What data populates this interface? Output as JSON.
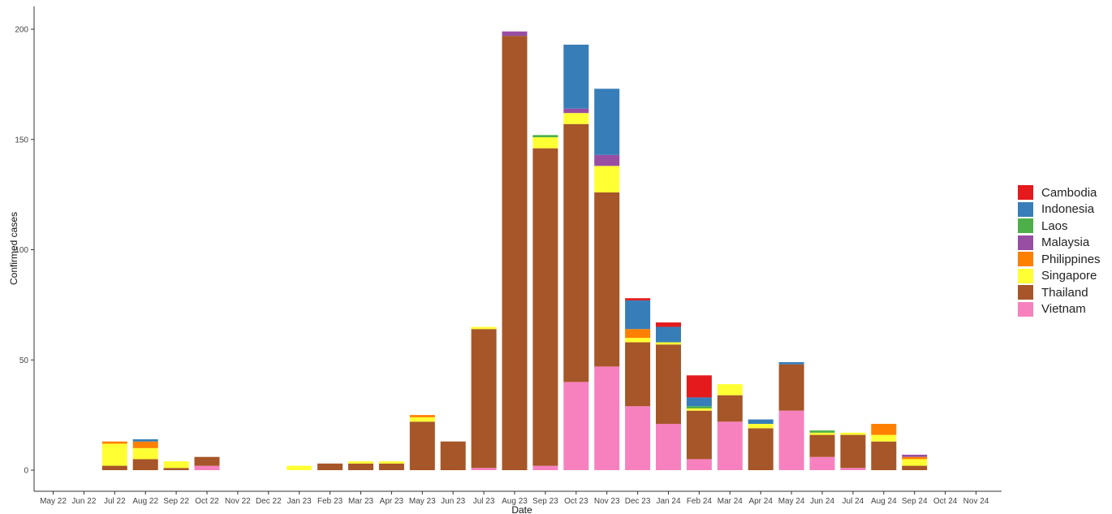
{
  "chart_data": {
    "type": "bar",
    "stacked": true,
    "xlabel": "Date",
    "ylabel": "Confirmed cases",
    "ylim": [
      0,
      200
    ],
    "yticks": [
      0,
      50,
      100,
      150,
      200
    ],
    "grid": false,
    "legend_position": "right",
    "categories": [
      "May 22",
      "Jun 22",
      "Jul 22",
      "Aug 22",
      "Sep 22",
      "Oct 22",
      "Nov 22",
      "Dec 22",
      "Jan 23",
      "Feb 23",
      "Mar 23",
      "Apr 23",
      "May 23",
      "Jun 23",
      "Jul 23",
      "Aug 23",
      "Sep 23",
      "Oct 23",
      "Nov 23",
      "Dec 23",
      "Jan 24",
      "Feb 24",
      "Mar 24",
      "Apr 24",
      "May 24",
      "Jun 24",
      "Jul 24",
      "Aug 24",
      "Sep 24",
      "Oct 24",
      "Nov 24"
    ],
    "series": [
      {
        "name": "Vietnam",
        "color": "#F781BF",
        "values": [
          0,
          0,
          0,
          0,
          0,
          2,
          0,
          0,
          0,
          0,
          0,
          0,
          0,
          0,
          1,
          0,
          2,
          40,
          47,
          29,
          21,
          5,
          22,
          0,
          27,
          6,
          1,
          0,
          0,
          0,
          0
        ]
      },
      {
        "name": "Thailand",
        "color": "#A65628",
        "values": [
          0,
          0,
          2,
          5,
          1,
          4,
          0,
          0,
          0,
          3,
          3,
          3,
          22,
          13,
          63,
          197,
          144,
          117,
          79,
          29,
          36,
          22,
          12,
          19,
          21,
          10,
          15,
          13,
          2,
          0,
          0
        ]
      },
      {
        "name": "Singapore",
        "color": "#FFFF33",
        "values": [
          0,
          0,
          10,
          5,
          3,
          0,
          0,
          0,
          2,
          0,
          1,
          1,
          2,
          0,
          1,
          0,
          5,
          5,
          12,
          2,
          1,
          1,
          5,
          2,
          0,
          1,
          1,
          3,
          3,
          0,
          0
        ]
      },
      {
        "name": "Philippines",
        "color": "#FF7F00",
        "values": [
          0,
          0,
          1,
          3,
          0,
          0,
          0,
          0,
          0,
          0,
          0,
          0,
          1,
          0,
          0,
          0,
          0,
          0,
          0,
          4,
          0,
          0,
          0,
          0,
          0,
          0,
          0,
          5,
          1,
          0,
          0
        ]
      },
      {
        "name": "Malaysia",
        "color": "#984EA3",
        "values": [
          0,
          0,
          0,
          0,
          0,
          0,
          0,
          0,
          0,
          0,
          0,
          0,
          0,
          0,
          0,
          2,
          0,
          2,
          5,
          0,
          0,
          0,
          0,
          0,
          0,
          0,
          0,
          0,
          1,
          0,
          0
        ]
      },
      {
        "name": "Laos",
        "color": "#4DAF4A",
        "values": [
          0,
          0,
          0,
          0,
          0,
          0,
          0,
          0,
          0,
          0,
          0,
          0,
          0,
          0,
          0,
          0,
          1,
          0,
          0,
          0,
          0,
          1,
          0,
          0,
          0,
          1,
          0,
          0,
          0,
          0,
          0
        ]
      },
      {
        "name": "Indonesia",
        "color": "#377EB8",
        "values": [
          0,
          0,
          0,
          1,
          0,
          0,
          0,
          0,
          0,
          0,
          0,
          0,
          0,
          0,
          0,
          0,
          0,
          29,
          30,
          13,
          7,
          4,
          0,
          2,
          1,
          0,
          0,
          0,
          0,
          0,
          0
        ]
      },
      {
        "name": "Cambodia",
        "color": "#E41A1C",
        "values": [
          0,
          0,
          0,
          0,
          0,
          0,
          0,
          0,
          0,
          0,
          0,
          0,
          0,
          0,
          0,
          0,
          0,
          0,
          0,
          1,
          2,
          10,
          0,
          0,
          0,
          0,
          0,
          0,
          0,
          0,
          0
        ]
      }
    ],
    "legend_order": [
      "Cambodia",
      "Indonesia",
      "Laos",
      "Malaysia",
      "Philippines",
      "Singapore",
      "Thailand",
      "Vietnam"
    ]
  }
}
